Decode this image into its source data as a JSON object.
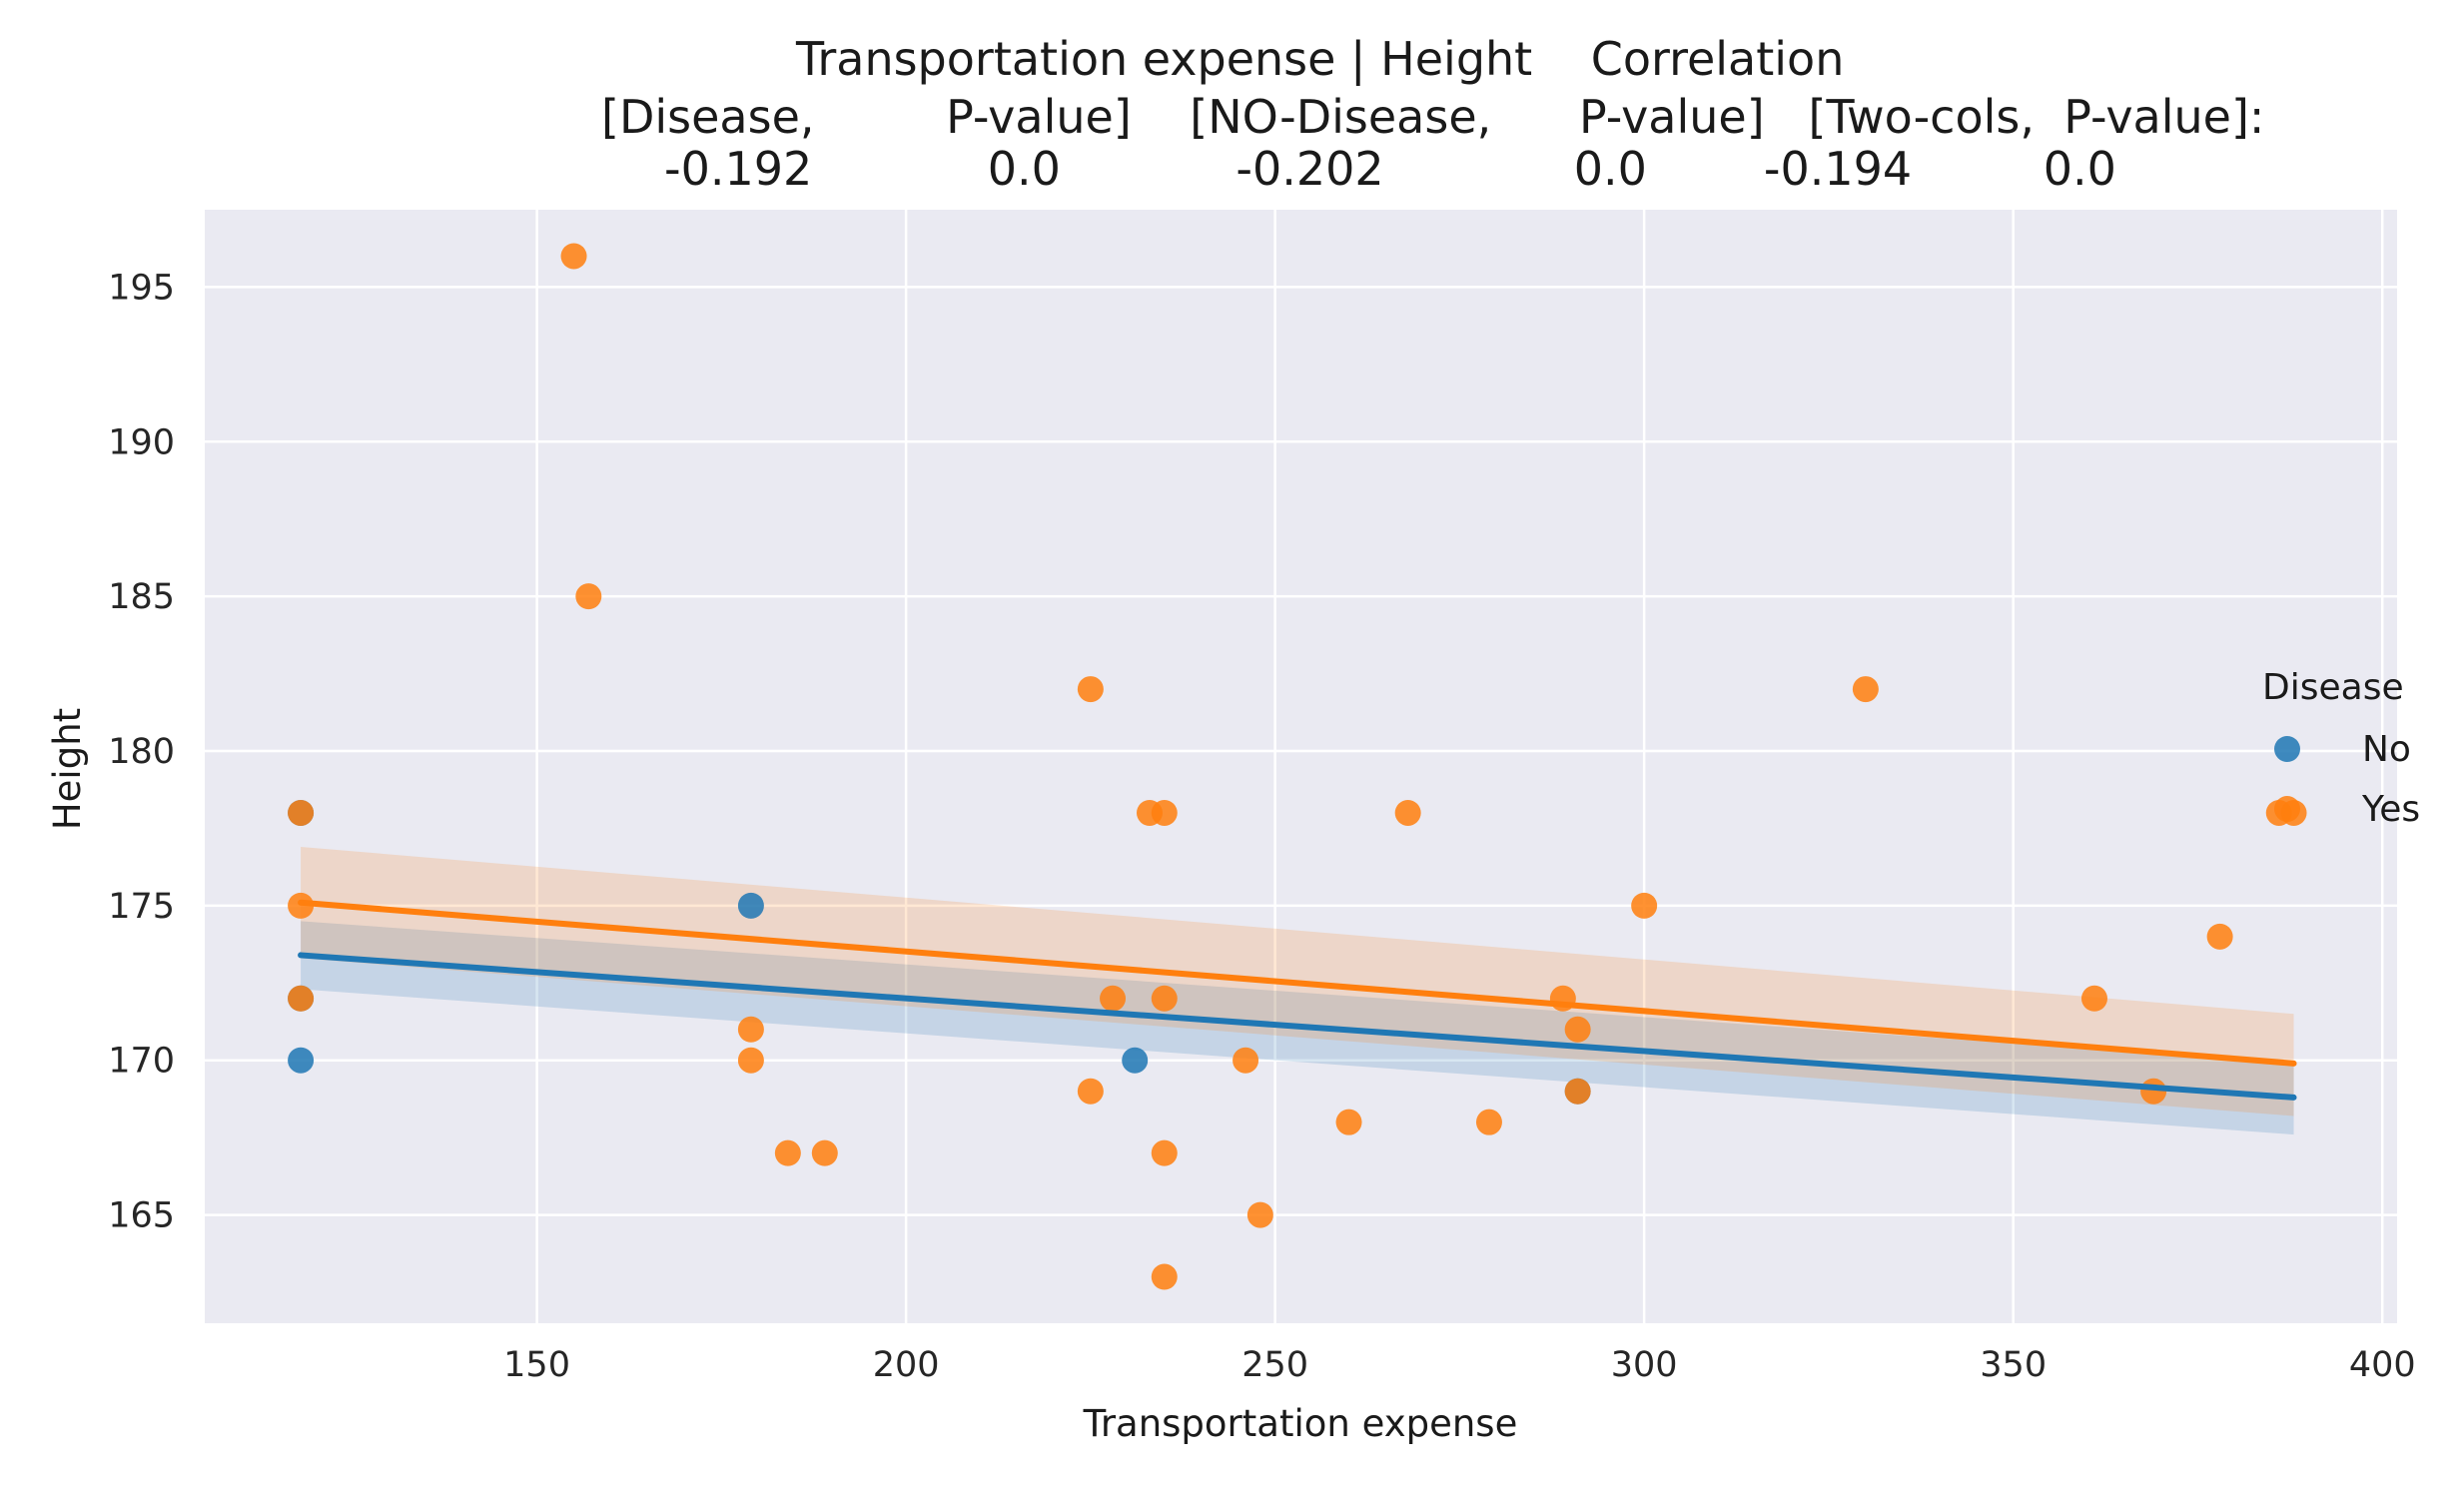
{
  "chart_data": {
    "type": "scatter",
    "title_lines": [
      "Transportation expense | Height    Correlation",
      "[Disease,         P-value]    [NO-Disease,      P-value]   [Two-cols,  P-value]:",
      "-0.192            0.0            -0.202             0.0        -0.194         0.0"
    ],
    "xlabel": "Transportation expense",
    "ylabel": "Height",
    "xlim": [
      105,
      402
    ],
    "ylim": [
      161.5,
      197.5
    ],
    "x_ticks": [
      150,
      200,
      250,
      300,
      350,
      400
    ],
    "y_ticks": [
      165,
      170,
      175,
      180,
      185,
      190,
      195
    ],
    "grid": true,
    "legend": {
      "title": "Disease",
      "placement": "right",
      "entries": [
        "No",
        "Yes"
      ]
    },
    "colors": {
      "No": "#1f77b4",
      "Yes": "#ff7f0e",
      "background": "#eaeaf2",
      "grid": "#ffffff"
    },
    "series": [
      {
        "name": "No",
        "points": [
          [
            118,
            170
          ],
          [
            179,
            175
          ],
          [
            231,
            170
          ],
          [
            291,
            169
          ],
          [
            118,
            172
          ],
          [
            118,
            178
          ]
        ],
        "fit": {
          "x": [
            118,
            388
          ],
          "y": [
            173.4,
            168.8
          ]
        },
        "ci_upper": [
          174.5,
          169.9
        ],
        "ci_lower": [
          172.3,
          167.6
        ]
      },
      {
        "name": "Yes",
        "points": [
          [
            118,
            178
          ],
          [
            118,
            175
          ],
          [
            118,
            172
          ],
          [
            155,
            196
          ],
          [
            157,
            185
          ],
          [
            179,
            171
          ],
          [
            179,
            170
          ],
          [
            184,
            167
          ],
          [
            189,
            167
          ],
          [
            225,
            182
          ],
          [
            225,
            169
          ],
          [
            228,
            172
          ],
          [
            233,
            178
          ],
          [
            235,
            178
          ],
          [
            235,
            172
          ],
          [
            235,
            167
          ],
          [
            235,
            163
          ],
          [
            246,
            170
          ],
          [
            248,
            165
          ],
          [
            260,
            168
          ],
          [
            268,
            178
          ],
          [
            279,
            168
          ],
          [
            289,
            172
          ],
          [
            291,
            171
          ],
          [
            291,
            169
          ],
          [
            300,
            175
          ],
          [
            330,
            182
          ],
          [
            361,
            172
          ],
          [
            369,
            169
          ],
          [
            378,
            174
          ],
          [
            386,
            178
          ],
          [
            388,
            178
          ]
        ],
        "fit": {
          "x": [
            118,
            388
          ],
          "y": [
            175.1,
            169.9
          ]
        },
        "ci_upper": [
          176.9,
          171.5
        ],
        "ci_lower": [
          173.3,
          168.2
        ]
      }
    ]
  }
}
